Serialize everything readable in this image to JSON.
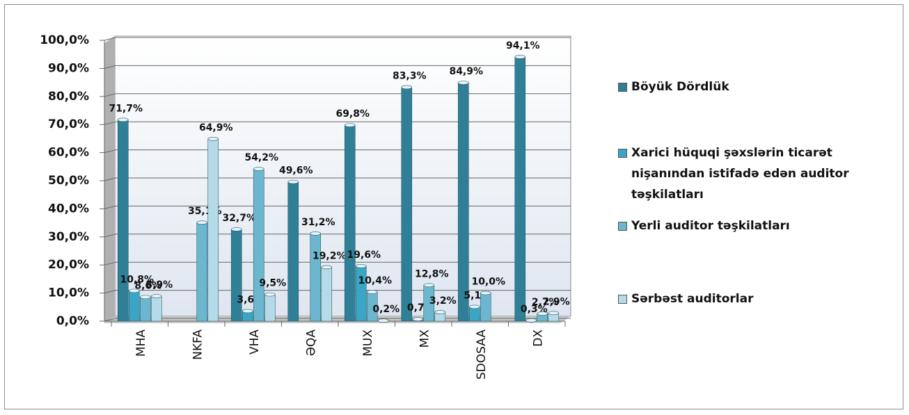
{
  "chart_data": {
    "type": "bar",
    "categories": [
      "MHA",
      "NKFA",
      "VHA",
      "ƏQA",
      "MUX",
      "MX",
      "SDOSAA",
      "DX"
    ],
    "series": [
      {
        "name": "Böyük Dördlük",
        "color": "#2f7f96",
        "values": [
          71.7,
          null,
          32.7,
          49.6,
          69.8,
          83.3,
          84.9,
          94.1
        ],
        "value_labels": [
          "71,7%",
          null,
          "32,7%",
          "49,6%",
          "69,8%",
          "83,3%",
          "84,9%",
          "94,1%"
        ]
      },
      {
        "name": "Xarici hüquqi şəxslərin ticarət nişanından istifadə edən auditor təşkilatları",
        "color": "#3aa5c4",
        "values": [
          10.8,
          null,
          3.6,
          null,
          19.6,
          0.7,
          5.1,
          0.3
        ],
        "value_labels": [
          "10,8%",
          null,
          "3,6%",
          null,
          "19,6%",
          "0,7%",
          "5,1%",
          "0,3%"
        ]
      },
      {
        "name": "Yerli auditor təşkilatları",
        "color": "#6db6cf",
        "values": [
          8.6,
          35.1,
          54.2,
          31.2,
          10.4,
          12.8,
          10.0,
          2.7
        ],
        "value_labels": [
          "8,6%",
          "35,1%",
          "54,2%",
          "31,2%",
          "10,4%",
          "12,8%",
          "10,0%",
          "2,7%"
        ]
      },
      {
        "name": "Sərbəst auditorlar",
        "color": "#b6dbe8",
        "values": [
          8.9,
          64.9,
          9.5,
          19.2,
          0.2,
          3.2,
          null,
          2.9
        ],
        "value_labels": [
          "8,9%",
          "64,9%",
          "9,5%",
          "19,2%",
          "0,2%",
          "3,2%",
          null,
          "2,9%"
        ]
      }
    ],
    "ylim": [
      0,
      100
    ],
    "yticks": [
      {
        "value": 0,
        "label": "0,0%"
      },
      {
        "value": 10,
        "label": "10,0%"
      },
      {
        "value": 20,
        "label": "20,0%"
      },
      {
        "value": 30,
        "label": "30,0%"
      },
      {
        "value": 40,
        "label": "40,0%"
      },
      {
        "value": 50,
        "label": "50,0%"
      },
      {
        "value": 60,
        "label": "60,0%"
      },
      {
        "value": 70,
        "label": "70,0%"
      },
      {
        "value": 80,
        "label": "80,0%"
      },
      {
        "value": 90,
        "label": "90,0%"
      },
      {
        "value": 100,
        "label": "100,0%"
      }
    ],
    "grid": true,
    "legend": "right"
  }
}
